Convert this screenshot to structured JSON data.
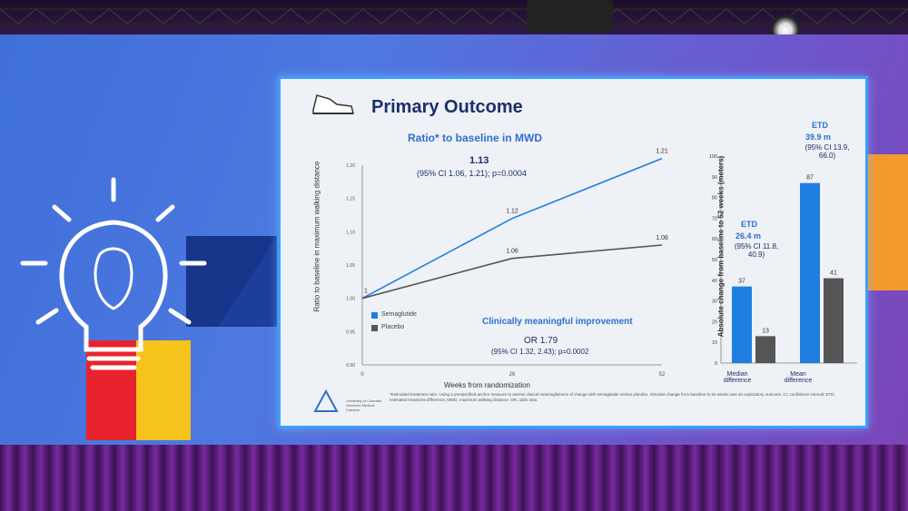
{
  "slide": {
    "title": "Primary Outcome",
    "line_chart_title": "Ratio* to baseline in MWD",
    "ratio_value": "1.13",
    "ratio_ci": "(95% CI 1.06, 1.21); p=0.0004",
    "y_axis_label": "Ratio to baseline in maximum walking distance",
    "x_axis_label": "Weeks from randomization",
    "legend": [
      "Semaglutide",
      "Placebo"
    ],
    "clinical_label": "Clinically meaningful improvement",
    "or_value": "OR 1.79",
    "or_ci": "(95% CI 1.32, 2.43); p=0.0002",
    "bar_y_axis_label": "Absolute change from baseline to 52 weeks (meters)",
    "etd1_label": "ETD",
    "etd1_value": "26.4 m",
    "etd1_ci": "(95% CI 11.8, 40.9)",
    "etd2_label": "ETD",
    "etd2_value": "39.9 m",
    "etd2_ci": "(95% CI 13.9, 66.0)",
    "bar_categories": [
      "Median difference",
      "Mean difference"
    ],
    "footnote": "*Estimated treatment ratio. Using a prespecified anchor measure to assess clinical meaningfulness of change with semaglutide versus placebo. Absolute change from baseline to 52 weeks was an exploratory outcome. CI, confidence interval; ETD, estimated treatment difference; MWD, maximum walking distance; OR, odds ratio.",
    "logo_text": "University of Colorado Anschutz Medical Campus"
  },
  "colors": {
    "semaglutide": "#1f7fe0",
    "placebo": "#555555",
    "title": "#1d2f6b"
  },
  "chart_data": [
    {
      "type": "line",
      "title": "Ratio* to baseline in MWD",
      "x": [
        0,
        26,
        52
      ],
      "xlabel": "Weeks from randomization",
      "ylabel": "Ratio to baseline in maximum walking distance",
      "ylim": [
        0.9,
        1.2
      ],
      "yticks": [
        "0.90",
        "0.95",
        "1.00",
        "1.05",
        "1.10",
        "1.15",
        "1.20"
      ],
      "xticks": [
        "0",
        "26",
        "52"
      ],
      "series": [
        {
          "name": "Semaglutide",
          "values": [
            1.0,
            1.12,
            1.21
          ],
          "labels": [
            "1",
            "1.12",
            "1.21"
          ]
        },
        {
          "name": "Placebo",
          "values": [
            1.0,
            1.06,
            1.08
          ],
          "labels": [
            "",
            "1.06",
            "1.08"
          ]
        }
      ]
    },
    {
      "type": "bar",
      "categories": [
        "Median difference",
        "Mean difference"
      ],
      "ylabel": "Absolute change from baseline to 52 weeks (meters)",
      "ylim": [
        0,
        100
      ],
      "yticks": [
        "0",
        "10",
        "20",
        "30",
        "40",
        "50",
        "60",
        "70",
        "80",
        "90",
        "100"
      ],
      "series": [
        {
          "name": "Semaglutide",
          "values": [
            37,
            87
          ]
        },
        {
          "name": "Placebo",
          "values": [
            13,
            41
          ]
        }
      ]
    }
  ]
}
